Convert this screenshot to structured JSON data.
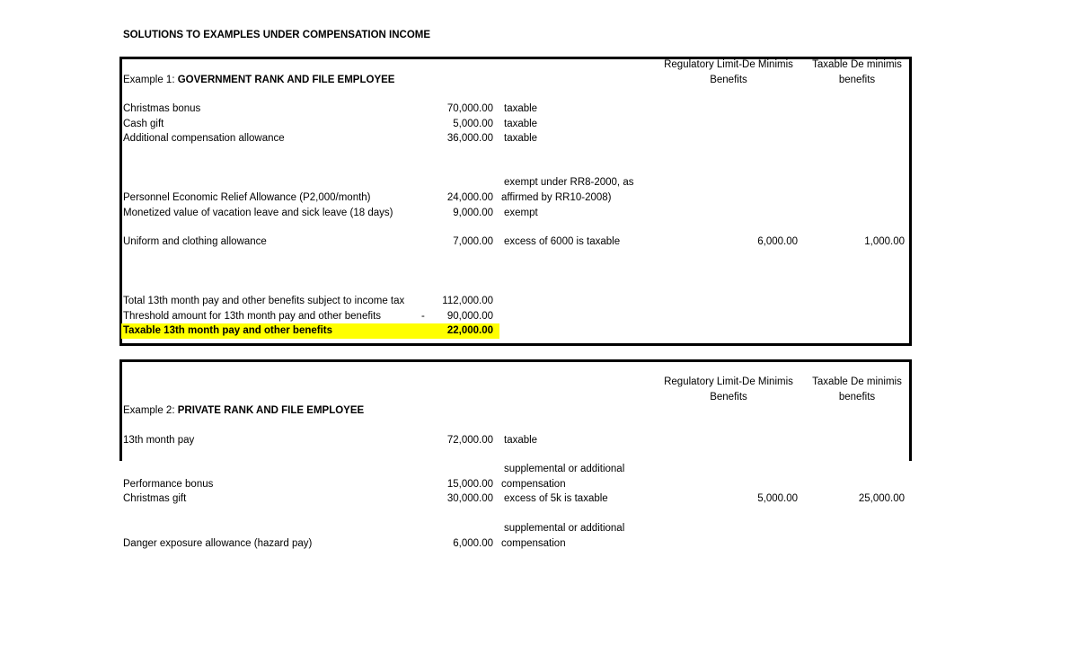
{
  "title": "SOLUTIONS TO EXAMPLES UNDER COMPENSATION INCOME",
  "colors": {
    "highlight": "#ffff00",
    "border": "#000000"
  },
  "example1": {
    "label_prefix": "Example 1: ",
    "label_bold": "GOVERNMENT RANK AND FILE EMPLOYEE",
    "header_regulatory": [
      "Regulatory Limit-De Minimis",
      "Benefits"
    ],
    "header_taxable": [
      "Taxable De minimis",
      "benefits"
    ],
    "rows": [
      {
        "item": "Christmas bonus",
        "amount": "70,000.00",
        "note": "taxable"
      },
      {
        "item": "Cash gift",
        "amount": "5,000.00",
        "note": "taxable"
      },
      {
        "item": "Additional compensation allowance",
        "amount": "36,000.00",
        "note": "taxable"
      },
      {
        "item": "Personnel Economic Relief Allowance (P2,000/month)",
        "amount": "24,000.00",
        "note": [
          "exempt under RR8-2000, as",
          "affirmed by RR10-2008)"
        ]
      },
      {
        "item": "Monetized value of vacation leave and sick leave (18 days)",
        "amount": "9,000.00",
        "note": "exempt"
      },
      {
        "item": "Uniform and clothing allowance",
        "amount": "7,000.00",
        "note": "excess of 6000 is taxable",
        "regulatory": "6,000.00",
        "taxable": "1,000.00"
      }
    ],
    "totals": [
      {
        "item": "Total 13th month pay and other benefits subject to income tax",
        "amount": "112,000.00"
      },
      {
        "item": "Threshold amount for 13th month pay and other benefits",
        "sign": "-",
        "amount": "90,000.00"
      },
      {
        "item": "Taxable 13th month pay and other benefits",
        "amount": "22,000.00"
      }
    ]
  },
  "example2": {
    "label_prefix": "Example 2: ",
    "label_bold": "PRIVATE RANK AND FILE EMPLOYEE",
    "header_regulatory": [
      "Regulatory Limit-De Minimis",
      "Benefits"
    ],
    "header_taxable": [
      "Taxable De minimis",
      "benefits"
    ],
    "rows": [
      {
        "item": "13th month pay",
        "amount": "72,000.00",
        "note": "taxable"
      },
      {
        "item": "Performance bonus",
        "amount": "15,000.00",
        "note": [
          "supplemental or additional",
          "compensation"
        ]
      },
      {
        "item": "Christmas gift",
        "amount": "30,000.00",
        "note": "excess of 5k is taxable",
        "regulatory": "5,000.00",
        "taxable": "25,000.00"
      },
      {
        "item": "Danger exposure allowance (hazard pay)",
        "amount": "6,000.00",
        "note": [
          "supplemental or additional",
          "compensation"
        ]
      }
    ]
  }
}
